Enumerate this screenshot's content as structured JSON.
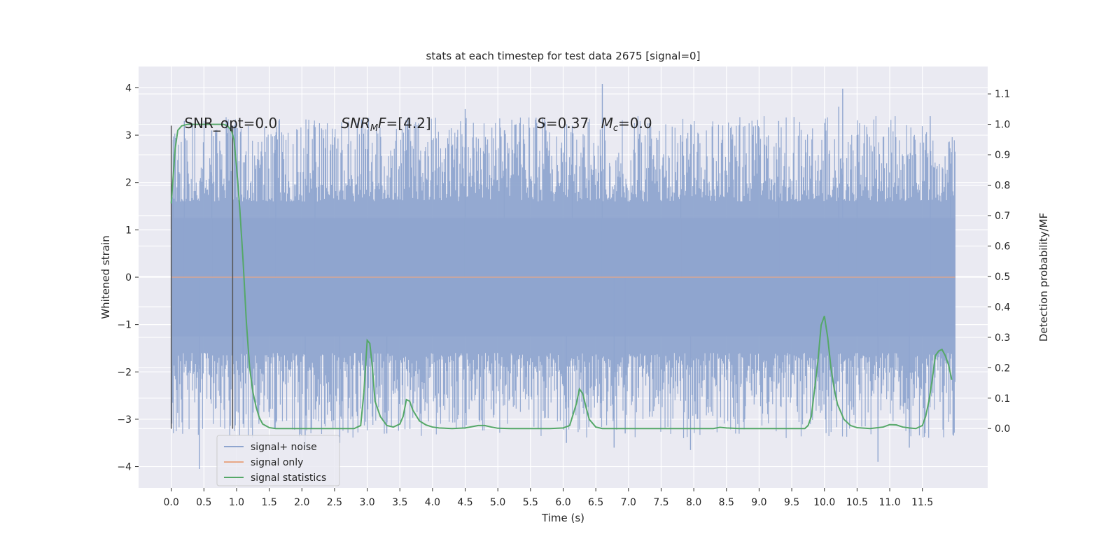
{
  "chart_data": {
    "type": "line",
    "title": "stats at each timestep for test data 2675 [signal=0]",
    "xlabel": "Time (s)",
    "ylabel": "Whitened strain",
    "y2label": "Detection probability/MF",
    "xlim": [
      -0.5,
      12.5
    ],
    "ylim": [
      -4.45,
      4.45
    ],
    "y2lim": [
      -0.195,
      1.19
    ],
    "xticks": [
      "0.0",
      "0.5",
      "1.0",
      "1.5",
      "2.0",
      "2.5",
      "3.0",
      "3.5",
      "4.0",
      "4.5",
      "5.0",
      "5.5",
      "6.0",
      "6.5",
      "7.0",
      "7.5",
      "8.0",
      "8.5",
      "9.0",
      "9.5",
      "10.0",
      "10.5",
      "11.0",
      "11.5"
    ],
    "yticks": [
      "4",
      "3",
      "2",
      "1",
      "0",
      "−1",
      "−2",
      "−3",
      "−4"
    ],
    "y2ticks": [
      "1.1",
      "1.0",
      "0.9",
      "0.8",
      "0.7",
      "0.6",
      "0.5",
      "0.4",
      "0.3",
      "0.2",
      "0.1",
      "0.0"
    ],
    "grid": true,
    "legend_position": "lower-left",
    "annotations": {
      "snr_opt": "SNR_opt=0.0",
      "snr_mf_base": "SNR",
      "snr_mf_sub": "M",
      "snr_mf_rest": "F=[4.2]",
      "s_label": "S",
      "s_value": "=0.37",
      "mc_base": "M",
      "mc_sub": "c",
      "mc_value": "=0.0"
    },
    "window_markers": [
      0.0,
      0.94
    ],
    "window_marker_range": [
      -3.2,
      3.2
    ],
    "series": [
      {
        "name": "signal+ noise",
        "color": "#8fa5cf",
        "kind": "noise",
        "x_range": [
          0.0,
          12.0
        ],
        "envelope_typical": 2.0,
        "peaks": [
          {
            "x": 0.03,
            "y": 2.9
          },
          {
            "x": 0.2,
            "y": 3.3
          },
          {
            "x": 0.43,
            "y": -4.05
          },
          {
            "x": 0.62,
            "y": 3.1
          },
          {
            "x": 1.1,
            "y": -3.1
          },
          {
            "x": 1.6,
            "y": 3.0
          },
          {
            "x": 2.05,
            "y": -3.6
          },
          {
            "x": 2.2,
            "y": 3.15
          },
          {
            "x": 2.58,
            "y": -3.5
          },
          {
            "x": 3.3,
            "y": -3.3
          },
          {
            "x": 4.5,
            "y": 3.55
          },
          {
            "x": 5.1,
            "y": 3.1
          },
          {
            "x": 6.05,
            "y": -3.5
          },
          {
            "x": 6.14,
            "y": 3.2
          },
          {
            "x": 6.6,
            "y": 4.08
          },
          {
            "x": 6.78,
            "y": -3.6
          },
          {
            "x": 6.95,
            "y": -3.3
          },
          {
            "x": 7.8,
            "y": 3.0
          },
          {
            "x": 7.95,
            "y": -3.65
          },
          {
            "x": 9.3,
            "y": 3.3
          },
          {
            "x": 10.22,
            "y": 3.6
          },
          {
            "x": 10.28,
            "y": 3.98
          },
          {
            "x": 10.5,
            "y": 3.0
          },
          {
            "x": 10.82,
            "y": -3.9
          },
          {
            "x": 11.3,
            "y": -3.6
          },
          {
            "x": 11.62,
            "y": 3.4
          },
          {
            "x": 11.93,
            "y": 2.4
          }
        ]
      },
      {
        "name": "signal only",
        "color": "#e8a887",
        "kind": "flat",
        "x": [
          0.0,
          12.0
        ],
        "y": [
          0.0,
          0.0
        ]
      },
      {
        "name": "signal statistics",
        "color": "#55a868",
        "kind": "line",
        "axis": "right",
        "x": [
          0.0,
          0.06,
          0.1,
          0.16,
          0.25,
          0.35,
          0.5,
          0.6,
          0.7,
          0.8,
          0.86,
          0.92,
          0.96,
          1.0,
          1.05,
          1.1,
          1.15,
          1.2,
          1.25,
          1.3,
          1.35,
          1.4,
          1.5,
          1.6,
          1.8,
          2.0,
          2.5,
          2.8,
          2.9,
          2.95,
          3.0,
          3.04,
          3.08,
          3.12,
          3.2,
          3.3,
          3.4,
          3.5,
          3.55,
          3.6,
          3.65,
          3.7,
          3.8,
          3.9,
          4.0,
          4.1,
          4.3,
          4.5,
          4.7,
          4.8,
          4.9,
          5.0,
          5.2,
          5.5,
          5.8,
          6.0,
          6.1,
          6.2,
          6.25,
          6.3,
          6.35,
          6.4,
          6.5,
          6.6,
          6.7,
          7.0,
          7.5,
          8.0,
          8.3,
          8.4,
          8.5,
          8.7,
          9.0,
          9.5,
          9.7,
          9.75,
          9.8,
          9.9,
          9.95,
          10.0,
          10.05,
          10.1,
          10.15,
          10.2,
          10.3,
          10.4,
          10.5,
          10.7,
          10.9,
          11.0,
          11.1,
          11.2,
          11.3,
          11.4,
          11.5,
          11.55,
          11.6,
          11.65,
          11.7,
          11.75,
          11.8,
          11.85,
          11.9,
          11.95
        ],
        "y": [
          0.74,
          0.92,
          0.98,
          0.995,
          1.0,
          1.0,
          1.0,
          1.0,
          1.0,
          1.0,
          0.995,
          0.98,
          0.95,
          0.86,
          0.72,
          0.55,
          0.35,
          0.2,
          0.12,
          0.07,
          0.035,
          0.015,
          0.003,
          0.0,
          0.0,
          0.0,
          0.0,
          0.0,
          0.01,
          0.12,
          0.29,
          0.28,
          0.2,
          0.09,
          0.04,
          0.01,
          0.005,
          0.015,
          0.04,
          0.095,
          0.09,
          0.06,
          0.025,
          0.012,
          0.005,
          0.002,
          0.0,
          0.002,
          0.01,
          0.01,
          0.005,
          0.001,
          0.0,
          0.0,
          0.0,
          0.002,
          0.01,
          0.08,
          0.13,
          0.115,
          0.07,
          0.03,
          0.005,
          0.0,
          0.0,
          0.0,
          0.0,
          0.0,
          0.0,
          0.004,
          0.002,
          0.0,
          0.0,
          0.0,
          0.0,
          0.01,
          0.04,
          0.22,
          0.34,
          0.37,
          0.3,
          0.2,
          0.13,
          0.08,
          0.03,
          0.01,
          0.003,
          0.0,
          0.005,
          0.013,
          0.012,
          0.005,
          0.002,
          0.0,
          0.01,
          0.04,
          0.09,
          0.16,
          0.24,
          0.255,
          0.26,
          0.24,
          0.21,
          0.16
        ]
      }
    ]
  }
}
